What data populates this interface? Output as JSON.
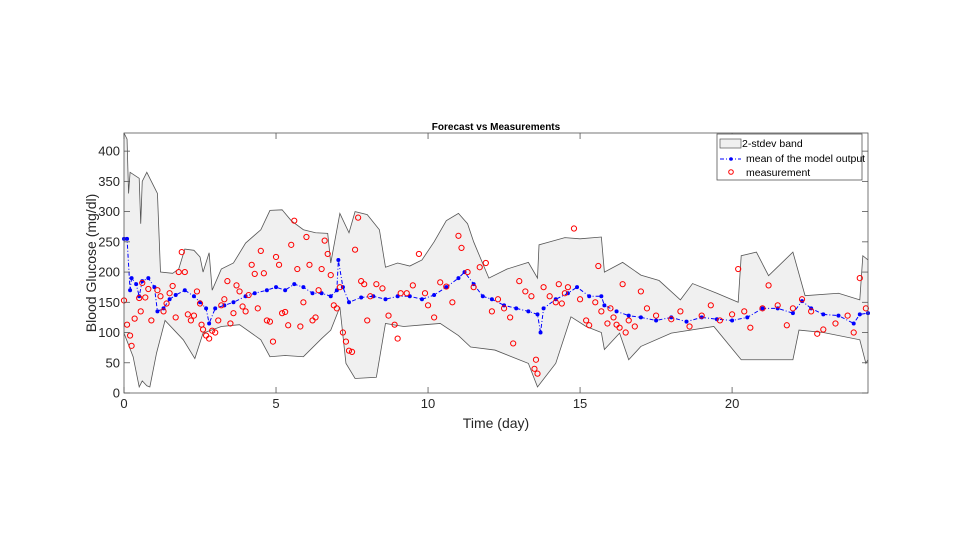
{
  "chart_data": {
    "type": "line",
    "title": "Forecast vs Measurements",
    "xlabel": "Time (day)",
    "ylabel": "Blood Glucose (mg/dl)",
    "xlim": [
      0,
      24.47
    ],
    "ylim": [
      0,
      430
    ],
    "xticks": [
      0,
      5,
      10,
      15,
      20
    ],
    "yticks": [
      0,
      50,
      100,
      150,
      200,
      250,
      300,
      350,
      400
    ],
    "grid": false,
    "legend_position": "top-right",
    "legend": [
      "2-stdev band",
      "mean of the model output",
      "measurement"
    ],
    "colors": {
      "band_fill": "#f0f0f0",
      "band_edge": "#555555",
      "mean": "#0000ff",
      "measurement": "#ff0000"
    },
    "band_upper": [
      [
        0,
        430
      ],
      [
        0.1,
        420
      ],
      [
        0.15,
        330
      ],
      [
        0.2,
        365
      ],
      [
        0.5,
        355
      ],
      [
        0.55,
        280
      ],
      [
        0.6,
        350
      ],
      [
        0.75,
        365
      ],
      [
        1.0,
        340
      ],
      [
        1.1,
        330
      ],
      [
        1.2,
        200
      ],
      [
        1.6,
        198
      ],
      [
        1.8,
        205
      ],
      [
        2.0,
        238
      ],
      [
        2.3,
        236
      ],
      [
        2.5,
        225
      ],
      [
        2.6,
        200
      ],
      [
        2.8,
        232
      ],
      [
        2.9,
        170
      ],
      [
        3.2,
        205
      ],
      [
        3.6,
        215
      ],
      [
        4.0,
        248
      ],
      [
        4.5,
        270
      ],
      [
        4.8,
        302
      ],
      [
        5.2,
        303
      ],
      [
        5.5,
        285
      ],
      [
        5.9,
        270
      ],
      [
        6.3,
        265
      ],
      [
        6.7,
        264
      ],
      [
        6.8,
        215
      ],
      [
        7.1,
        297
      ],
      [
        7.4,
        265
      ],
      [
        7.6,
        300
      ],
      [
        8.0,
        295
      ],
      [
        8.4,
        270
      ],
      [
        8.6,
        208
      ],
      [
        9.0,
        215
      ],
      [
        9.4,
        210
      ],
      [
        9.8,
        220
      ],
      [
        10.2,
        250
      ],
      [
        10.6,
        285
      ],
      [
        11.0,
        297
      ],
      [
        11.3,
        280
      ],
      [
        11.5,
        250
      ],
      [
        12.0,
        190
      ],
      [
        12.6,
        205
      ],
      [
        13.3,
        216
      ],
      [
        13.6,
        190
      ],
      [
        13.65,
        245
      ],
      [
        14.0,
        250
      ],
      [
        14.5,
        257
      ],
      [
        15.0,
        255
      ],
      [
        15.7,
        258
      ],
      [
        15.8,
        200
      ],
      [
        16.4,
        216
      ],
      [
        17.0,
        195
      ],
      [
        17.6,
        186
      ],
      [
        18.3,
        154
      ],
      [
        18.7,
        181
      ],
      [
        19.5,
        165
      ],
      [
        20.2,
        150
      ],
      [
        20.3,
        227
      ],
      [
        20.8,
        233
      ],
      [
        21.2,
        194
      ],
      [
        22.0,
        233
      ],
      [
        22.4,
        161
      ],
      [
        23.5,
        165
      ],
      [
        24.2,
        154
      ],
      [
        24.3,
        227
      ],
      [
        24.47,
        220
      ]
    ],
    "band_lower": [
      [
        0,
        99
      ],
      [
        0.3,
        60
      ],
      [
        0.5,
        10
      ],
      [
        0.6,
        20
      ],
      [
        0.75,
        12
      ],
      [
        0.85,
        10
      ],
      [
        1.07,
        66
      ],
      [
        1.35,
        120
      ],
      [
        1.95,
        88
      ],
      [
        2.33,
        57
      ],
      [
        2.6,
        99
      ],
      [
        3.2,
        110
      ],
      [
        3.8,
        113
      ],
      [
        4.5,
        88
      ],
      [
        4.8,
        60
      ],
      [
        5.3,
        62
      ],
      [
        5.9,
        60
      ],
      [
        6.5,
        90
      ],
      [
        6.8,
        104
      ],
      [
        7.1,
        142
      ],
      [
        7.3,
        49
      ],
      [
        7.6,
        24
      ],
      [
        8.3,
        26
      ],
      [
        8.6,
        115
      ],
      [
        9.2,
        110
      ],
      [
        9.9,
        113
      ],
      [
        10.4,
        115
      ],
      [
        11.0,
        95
      ],
      [
        11.4,
        76
      ],
      [
        12.2,
        71
      ],
      [
        13.3,
        49
      ],
      [
        13.6,
        10
      ],
      [
        14.2,
        49
      ],
      [
        14.7,
        126
      ],
      [
        15.2,
        110
      ],
      [
        15.7,
        100
      ],
      [
        15.8,
        72
      ],
      [
        16.3,
        99
      ],
      [
        16.6,
        55
      ],
      [
        17.0,
        77
      ],
      [
        18.0,
        99
      ],
      [
        19.4,
        110
      ],
      [
        20.3,
        55
      ],
      [
        21.0,
        55
      ],
      [
        22.0,
        55
      ],
      [
        22.2,
        104
      ],
      [
        23.0,
        100
      ],
      [
        24.2,
        88
      ],
      [
        24.4,
        49
      ],
      [
        24.47,
        55
      ]
    ],
    "mean": [
      [
        0,
        255
      ],
      [
        0.1,
        255
      ],
      [
        0.2,
        170
      ],
      [
        0.25,
        190
      ],
      [
        0.4,
        180
      ],
      [
        0.5,
        160
      ],
      [
        0.6,
        185
      ],
      [
        0.8,
        190
      ],
      [
        1.0,
        175
      ],
      [
        1.1,
        135
      ],
      [
        1.3,
        140
      ],
      [
        1.5,
        155
      ],
      [
        1.7,
        162
      ],
      [
        2.0,
        170
      ],
      [
        2.3,
        160
      ],
      [
        2.5,
        150
      ],
      [
        2.7,
        140
      ],
      [
        2.8,
        115
      ],
      [
        3.0,
        140
      ],
      [
        3.3,
        145
      ],
      [
        3.6,
        150
      ],
      [
        4.0,
        160
      ],
      [
        4.3,
        165
      ],
      [
        4.7,
        170
      ],
      [
        5.0,
        175
      ],
      [
        5.3,
        170
      ],
      [
        5.6,
        180
      ],
      [
        5.9,
        175
      ],
      [
        6.2,
        165
      ],
      [
        6.5,
        165
      ],
      [
        6.8,
        160
      ],
      [
        7.0,
        170
      ],
      [
        7.05,
        220
      ],
      [
        7.2,
        175
      ],
      [
        7.4,
        150
      ],
      [
        7.8,
        158
      ],
      [
        8.2,
        160
      ],
      [
        8.6,
        155
      ],
      [
        9.0,
        160
      ],
      [
        9.4,
        160
      ],
      [
        9.8,
        155
      ],
      [
        10.2,
        162
      ],
      [
        10.6,
        175
      ],
      [
        11.0,
        190
      ],
      [
        11.2,
        200
      ],
      [
        11.5,
        180
      ],
      [
        11.8,
        160
      ],
      [
        12.1,
        155
      ],
      [
        12.5,
        145
      ],
      [
        12.9,
        140
      ],
      [
        13.3,
        135
      ],
      [
        13.6,
        130
      ],
      [
        13.7,
        100
      ],
      [
        13.8,
        140
      ],
      [
        14.2,
        155
      ],
      [
        14.6,
        165
      ],
      [
        14.9,
        175
      ],
      [
        15.3,
        160
      ],
      [
        15.7,
        160
      ],
      [
        15.8,
        145
      ],
      [
        16.2,
        135
      ],
      [
        16.6,
        128
      ],
      [
        17.0,
        125
      ],
      [
        17.5,
        120
      ],
      [
        18.0,
        125
      ],
      [
        18.5,
        118
      ],
      [
        19.0,
        125
      ],
      [
        19.5,
        122
      ],
      [
        20.0,
        120
      ],
      [
        20.5,
        125
      ],
      [
        21.0,
        140
      ],
      [
        21.5,
        140
      ],
      [
        22.0,
        132
      ],
      [
        22.3,
        152
      ],
      [
        22.6,
        140
      ],
      [
        23.0,
        130
      ],
      [
        23.5,
        128
      ],
      [
        24.0,
        115
      ],
      [
        24.2,
        130
      ],
      [
        24.47,
        132
      ]
    ],
    "measurements": [
      [
        0,
        153
      ],
      [
        0.1,
        113
      ],
      [
        0.2,
        95
      ],
      [
        0.25,
        78
      ],
      [
        0.35,
        123
      ],
      [
        0.5,
        157
      ],
      [
        0.55,
        135
      ],
      [
        0.6,
        182
      ],
      [
        0.7,
        158
      ],
      [
        0.8,
        172
      ],
      [
        0.9,
        120
      ],
      [
        1.1,
        170
      ],
      [
        1.2,
        160
      ],
      [
        1.3,
        135
      ],
      [
        1.4,
        148
      ],
      [
        1.5,
        165
      ],
      [
        1.6,
        177
      ],
      [
        1.7,
        125
      ],
      [
        1.8,
        200
      ],
      [
        1.9,
        233
      ],
      [
        2.0,
        200
      ],
      [
        2.1,
        130
      ],
      [
        2.2,
        120
      ],
      [
        2.3,
        128
      ],
      [
        2.4,
        168
      ],
      [
        2.5,
        148
      ],
      [
        2.55,
        113
      ],
      [
        2.6,
        105
      ],
      [
        2.7,
        95
      ],
      [
        2.8,
        90
      ],
      [
        2.9,
        103
      ],
      [
        3.0,
        100
      ],
      [
        3.1,
        120
      ],
      [
        3.2,
        145
      ],
      [
        3.3,
        155
      ],
      [
        3.4,
        185
      ],
      [
        3.5,
        115
      ],
      [
        3.6,
        132
      ],
      [
        3.7,
        178
      ],
      [
        3.8,
        168
      ],
      [
        3.9,
        143
      ],
      [
        4.0,
        135
      ],
      [
        4.1,
        162
      ],
      [
        4.2,
        212
      ],
      [
        4.3,
        197
      ],
      [
        4.4,
        140
      ],
      [
        4.5,
        235
      ],
      [
        4.6,
        198
      ],
      [
        4.7,
        120
      ],
      [
        4.8,
        118
      ],
      [
        4.9,
        85
      ],
      [
        5.0,
        225
      ],
      [
        5.1,
        212
      ],
      [
        5.2,
        132
      ],
      [
        5.3,
        134
      ],
      [
        5.4,
        112
      ],
      [
        5.5,
        245
      ],
      [
        5.6,
        285
      ],
      [
        5.7,
        205
      ],
      [
        5.8,
        110
      ],
      [
        5.9,
        150
      ],
      [
        6.0,
        258
      ],
      [
        6.1,
        212
      ],
      [
        6.2,
        120
      ],
      [
        6.3,
        125
      ],
      [
        6.4,
        170
      ],
      [
        6.5,
        205
      ],
      [
        6.6,
        252
      ],
      [
        6.7,
        230
      ],
      [
        6.8,
        195
      ],
      [
        6.9,
        145
      ],
      [
        7.0,
        140
      ],
      [
        7.1,
        175
      ],
      [
        7.2,
        100
      ],
      [
        7.3,
        85
      ],
      [
        7.4,
        70
      ],
      [
        7.5,
        68
      ],
      [
        7.6,
        237
      ],
      [
        7.7,
        290
      ],
      [
        7.8,
        185
      ],
      [
        7.9,
        180
      ],
      [
        8.0,
        120
      ],
      [
        8.1,
        160
      ],
      [
        8.3,
        180
      ],
      [
        8.5,
        173
      ],
      [
        8.7,
        128
      ],
      [
        8.9,
        113
      ],
      [
        9.0,
        90
      ],
      [
        9.1,
        165
      ],
      [
        9.3,
        165
      ],
      [
        9.5,
        178
      ],
      [
        9.7,
        230
      ],
      [
        9.9,
        165
      ],
      [
        10.0,
        145
      ],
      [
        10.2,
        125
      ],
      [
        10.4,
        183
      ],
      [
        10.6,
        176
      ],
      [
        10.8,
        150
      ],
      [
        11.0,
        260
      ],
      [
        11.1,
        240
      ],
      [
        11.3,
        200
      ],
      [
        11.5,
        175
      ],
      [
        11.7,
        208
      ],
      [
        11.9,
        215
      ],
      [
        12.1,
        135
      ],
      [
        12.3,
        155
      ],
      [
        12.5,
        140
      ],
      [
        12.7,
        125
      ],
      [
        12.8,
        82
      ],
      [
        13.0,
        185
      ],
      [
        13.2,
        168
      ],
      [
        13.4,
        160
      ],
      [
        13.5,
        40
      ],
      [
        13.55,
        55
      ],
      [
        13.6,
        32
      ],
      [
        13.8,
        175
      ],
      [
        14.0,
        160
      ],
      [
        14.2,
        150
      ],
      [
        14.3,
        180
      ],
      [
        14.4,
        148
      ],
      [
        14.5,
        165
      ],
      [
        14.6,
        175
      ],
      [
        14.8,
        272
      ],
      [
        15.0,
        155
      ],
      [
        15.2,
        120
      ],
      [
        15.3,
        112
      ],
      [
        15.5,
        150
      ],
      [
        15.6,
        210
      ],
      [
        15.7,
        135
      ],
      [
        15.9,
        115
      ],
      [
        16.0,
        140
      ],
      [
        16.1,
        125
      ],
      [
        16.2,
        113
      ],
      [
        16.3,
        108
      ],
      [
        16.4,
        180
      ],
      [
        16.5,
        100
      ],
      [
        16.6,
        120
      ],
      [
        16.8,
        110
      ],
      [
        17.0,
        168
      ],
      [
        17.2,
        140
      ],
      [
        17.5,
        128
      ],
      [
        18.0,
        122
      ],
      [
        18.3,
        135
      ],
      [
        18.6,
        110
      ],
      [
        19.0,
        128
      ],
      [
        19.3,
        145
      ],
      [
        19.6,
        120
      ],
      [
        20.0,
        130
      ],
      [
        20.2,
        205
      ],
      [
        20.4,
        135
      ],
      [
        20.6,
        108
      ],
      [
        21.0,
        140
      ],
      [
        21.2,
        178
      ],
      [
        21.5,
        145
      ],
      [
        21.8,
        112
      ],
      [
        22.0,
        140
      ],
      [
        22.3,
        155
      ],
      [
        22.6,
        135
      ],
      [
        22.8,
        98
      ],
      [
        23.0,
        105
      ],
      [
        23.4,
        115
      ],
      [
        23.8,
        128
      ],
      [
        24.0,
        100
      ],
      [
        24.2,
        190
      ],
      [
        24.4,
        140
      ]
    ]
  }
}
